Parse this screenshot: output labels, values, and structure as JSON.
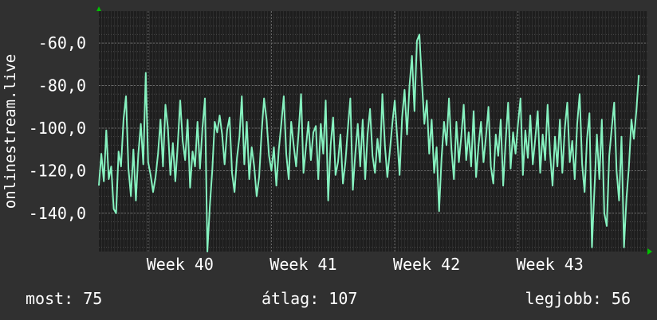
{
  "colors": {
    "background": "#303030",
    "plot_bg": "#1e1e1e",
    "line": "#86f2c0",
    "grid": "#5a5a5a",
    "text": "#ffffff",
    "axis_arrow": "#00c000"
  },
  "footer": {
    "now_label": "most:",
    "now_value": "75",
    "avg_label": "átlag:",
    "avg_value": "107",
    "best_label": "legjobb:",
    "best_value": "56"
  },
  "chart_data": {
    "type": "line",
    "title": "",
    "ylabel": "onlinestream.live",
    "xlabel": "",
    "ylim": [
      -158,
      -45
    ],
    "y_ticks": [
      -60,
      -80,
      -100,
      -120,
      -140
    ],
    "y_tick_labels": [
      "-60,0",
      "-80,0",
      "-100,0",
      "-120,0",
      "-140,0"
    ],
    "x_ticks": [
      40,
      41,
      42,
      43
    ],
    "x_tick_labels": [
      "Week 40",
      "Week 41",
      "Week 42",
      "Week 43"
    ],
    "xlim": [
      39.6,
      44.05
    ],
    "grid": true,
    "series": [
      {
        "values": [
          [
            39.6,
            -127
          ],
          [
            39.62,
            -112
          ],
          [
            39.64,
            -125
          ],
          [
            39.66,
            -101
          ],
          [
            39.68,
            -124
          ],
          [
            39.7,
            -118
          ],
          [
            39.72,
            -138
          ],
          [
            39.74,
            -140
          ],
          [
            39.76,
            -111
          ],
          [
            39.78,
            -118
          ],
          [
            39.8,
            -96
          ],
          [
            39.82,
            -85
          ],
          [
            39.84,
            -119
          ],
          [
            39.86,
            -132
          ],
          [
            39.88,
            -110
          ],
          [
            39.9,
            -134
          ],
          [
            39.92,
            -112
          ],
          [
            39.94,
            -98
          ],
          [
            39.96,
            -117
          ],
          [
            39.98,
            -74
          ],
          [
            40.0,
            -116
          ],
          [
            40.02,
            -122
          ],
          [
            40.04,
            -130
          ],
          [
            40.06,
            -123
          ],
          [
            40.08,
            -112
          ],
          [
            40.1,
            -96
          ],
          [
            40.12,
            -118
          ],
          [
            40.14,
            -89
          ],
          [
            40.16,
            -100
          ],
          [
            40.18,
            -122
          ],
          [
            40.2,
            -107
          ],
          [
            40.22,
            -125
          ],
          [
            40.24,
            -108
          ],
          [
            40.26,
            -87
          ],
          [
            40.28,
            -106
          ],
          [
            40.3,
            -115
          ],
          [
            40.32,
            -96
          ],
          [
            40.34,
            -128
          ],
          [
            40.36,
            -111
          ],
          [
            40.38,
            -118
          ],
          [
            40.4,
            -97
          ],
          [
            40.42,
            -119
          ],
          [
            40.44,
            -100
          ],
          [
            40.46,
            -86
          ],
          [
            40.48,
            -158
          ],
          [
            40.5,
            -137
          ],
          [
            40.52,
            -120
          ],
          [
            40.54,
            -97
          ],
          [
            40.56,
            -102
          ],
          [
            40.58,
            -94
          ],
          [
            40.6,
            -103
          ],
          [
            40.62,
            -117
          ],
          [
            40.64,
            -101
          ],
          [
            40.66,
            -95
          ],
          [
            40.68,
            -121
          ],
          [
            40.7,
            -130
          ],
          [
            40.72,
            -114
          ],
          [
            40.74,
            -104
          ],
          [
            40.76,
            -85
          ],
          [
            40.78,
            -117
          ],
          [
            40.8,
            -97
          ],
          [
            40.82,
            -124
          ],
          [
            40.84,
            -109
          ],
          [
            40.86,
            -118
          ],
          [
            40.88,
            -132
          ],
          [
            40.9,
            -123
          ],
          [
            40.92,
            -102
          ],
          [
            40.94,
            -86
          ],
          [
            40.96,
            -96
          ],
          [
            40.98,
            -113
          ],
          [
            41.0,
            -120
          ],
          [
            41.02,
            -109
          ],
          [
            41.04,
            -127
          ],
          [
            41.06,
            -110
          ],
          [
            41.08,
            -98
          ],
          [
            41.1,
            -85
          ],
          [
            41.12,
            -112
          ],
          [
            41.14,
            -124
          ],
          [
            41.16,
            -97
          ],
          [
            41.18,
            -108
          ],
          [
            41.2,
            -118
          ],
          [
            41.22,
            -102
          ],
          [
            41.24,
            -84
          ],
          [
            41.26,
            -121
          ],
          [
            41.28,
            -109
          ],
          [
            41.3,
            -97
          ],
          [
            41.32,
            -115
          ],
          [
            41.34,
            -102
          ],
          [
            41.36,
            -99
          ],
          [
            41.38,
            -124
          ],
          [
            41.4,
            -98
          ],
          [
            41.42,
            -112
          ],
          [
            41.44,
            -87
          ],
          [
            41.46,
            -134
          ],
          [
            41.48,
            -108
          ],
          [
            41.5,
            -95
          ],
          [
            41.52,
            -122
          ],
          [
            41.54,
            -116
          ],
          [
            41.56,
            -103
          ],
          [
            41.58,
            -126
          ],
          [
            41.6,
            -116
          ],
          [
            41.62,
            -100
          ],
          [
            41.64,
            -86
          ],
          [
            41.66,
            -129
          ],
          [
            41.68,
            -112
          ],
          [
            41.7,
            -98
          ],
          [
            41.72,
            -118
          ],
          [
            41.74,
            -96
          ],
          [
            41.76,
            -124
          ],
          [
            41.78,
            -103
          ],
          [
            41.8,
            -91
          ],
          [
            41.82,
            -113
          ],
          [
            41.84,
            -121
          ],
          [
            41.86,
            -105
          ],
          [
            41.88,
            -116
          ],
          [
            41.9,
            -84
          ],
          [
            41.92,
            -108
          ],
          [
            41.94,
            -123
          ],
          [
            41.96,
            -111
          ],
          [
            41.98,
            -98
          ],
          [
            42.0,
            -87
          ],
          [
            42.02,
            -104
          ],
          [
            42.04,
            -122
          ],
          [
            42.06,
            -95
          ],
          [
            42.08,
            -82
          ],
          [
            42.1,
            -103
          ],
          [
            42.12,
            -80
          ],
          [
            42.14,
            -66
          ],
          [
            42.16,
            -92
          ],
          [
            42.18,
            -59
          ],
          [
            42.2,
            -56
          ],
          [
            42.22,
            -78
          ],
          [
            42.24,
            -98
          ],
          [
            42.26,
            -87
          ],
          [
            42.28,
            -112
          ],
          [
            42.3,
            -96
          ],
          [
            42.32,
            -121
          ],
          [
            42.34,
            -109
          ],
          [
            42.36,
            -139
          ],
          [
            42.38,
            -114
          ],
          [
            42.4,
            -97
          ],
          [
            42.42,
            -108
          ],
          [
            42.44,
            -86
          ],
          [
            42.46,
            -110
          ],
          [
            42.48,
            -124
          ],
          [
            42.5,
            -97
          ],
          [
            42.52,
            -116
          ],
          [
            42.54,
            -104
          ],
          [
            42.56,
            -89
          ],
          [
            42.58,
            -115
          ],
          [
            42.6,
            -102
          ],
          [
            42.62,
            -118
          ],
          [
            42.64,
            -92
          ],
          [
            42.66,
            -123
          ],
          [
            42.68,
            -108
          ],
          [
            42.7,
            -97
          ],
          [
            42.72,
            -116
          ],
          [
            42.74,
            -104
          ],
          [
            42.76,
            -90
          ],
          [
            42.78,
            -118
          ],
          [
            42.8,
            -126
          ],
          [
            42.82,
            -103
          ],
          [
            42.84,
            -113
          ],
          [
            42.86,
            -96
          ],
          [
            42.88,
            -127
          ],
          [
            42.9,
            -106
          ],
          [
            42.92,
            -88
          ],
          [
            42.94,
            -119
          ],
          [
            42.96,
            -102
          ],
          [
            42.98,
            -112
          ],
          [
            43.0,
            -98
          ],
          [
            43.02,
            -86
          ],
          [
            43.04,
            -122
          ],
          [
            43.06,
            -101
          ],
          [
            43.08,
            -114
          ],
          [
            43.1,
            -94
          ],
          [
            43.12,
            -117
          ],
          [
            43.14,
            -105
          ],
          [
            43.16,
            -92
          ],
          [
            43.18,
            -121
          ],
          [
            43.2,
            -103
          ],
          [
            43.22,
            -115
          ],
          [
            43.24,
            -89
          ],
          [
            43.26,
            -112
          ],
          [
            43.28,
            -127
          ],
          [
            43.3,
            -104
          ],
          [
            43.32,
            -118
          ],
          [
            43.34,
            -96
          ],
          [
            43.36,
            -121
          ],
          [
            43.38,
            -100
          ],
          [
            43.4,
            -88
          ],
          [
            43.42,
            -116
          ],
          [
            43.44,
            -106
          ],
          [
            43.46,
            -124
          ],
          [
            43.48,
            -98
          ],
          [
            43.5,
            -84
          ],
          [
            43.52,
            -117
          ],
          [
            43.54,
            -130
          ],
          [
            43.56,
            -105
          ],
          [
            43.58,
            -93
          ],
          [
            43.6,
            -156
          ],
          [
            43.62,
            -129
          ],
          [
            43.64,
            -103
          ],
          [
            43.66,
            -124
          ],
          [
            43.68,
            -96
          ],
          [
            43.7,
            -140
          ],
          [
            43.72,
            -146
          ],
          [
            43.74,
            -113
          ],
          [
            43.76,
            -100
          ],
          [
            43.78,
            -88
          ],
          [
            43.8,
            -120
          ],
          [
            43.82,
            -134
          ],
          [
            43.84,
            -104
          ],
          [
            43.86,
            -156
          ],
          [
            43.88,
            -133
          ],
          [
            43.9,
            -118
          ],
          [
            43.92,
            -96
          ],
          [
            43.94,
            -105
          ],
          [
            43.96,
            -92
          ],
          [
            43.98,
            -75
          ]
        ]
      }
    ]
  }
}
